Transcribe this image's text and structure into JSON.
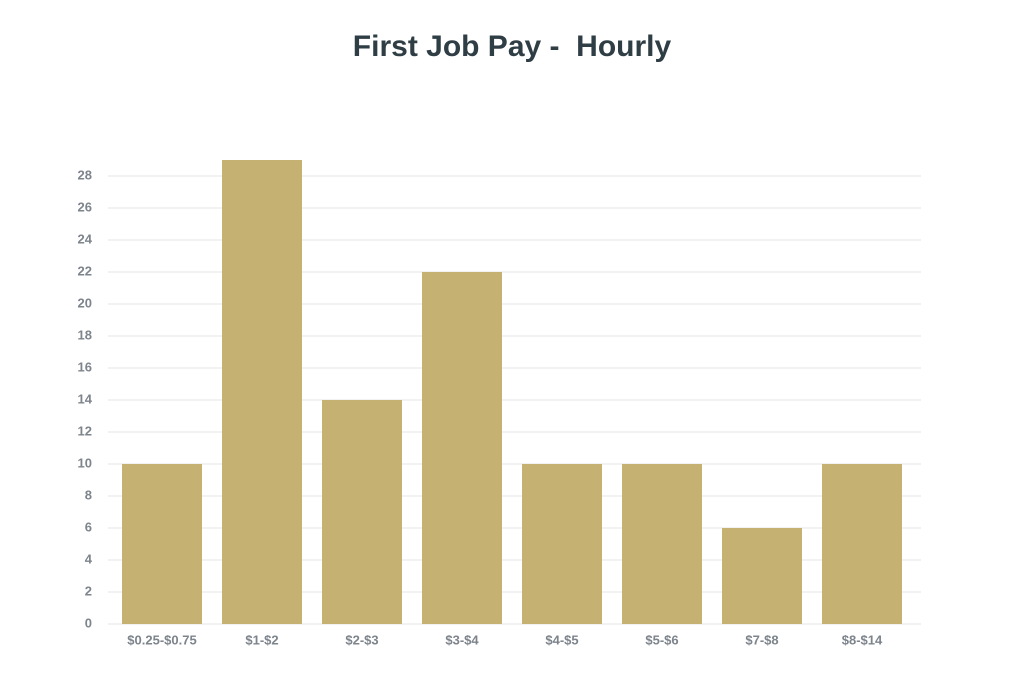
{
  "chart_data": {
    "type": "bar",
    "title": "First Job Pay -  Hourly",
    "categories": [
      "$0.25-$0.75",
      "$1-$2",
      "$2-$3",
      "$3-$4",
      "$4-$5",
      "$5-$6",
      "$7-$8",
      "$8-$14"
    ],
    "values": [
      10,
      29,
      14,
      22,
      10,
      10,
      6,
      10
    ],
    "color": "#c5b273",
    "ylim": [
      0,
      29
    ],
    "yticks": [
      0,
      2,
      4,
      6,
      8,
      10,
      12,
      14,
      16,
      18,
      20,
      22,
      24,
      26,
      28
    ],
    "grid": true
  }
}
